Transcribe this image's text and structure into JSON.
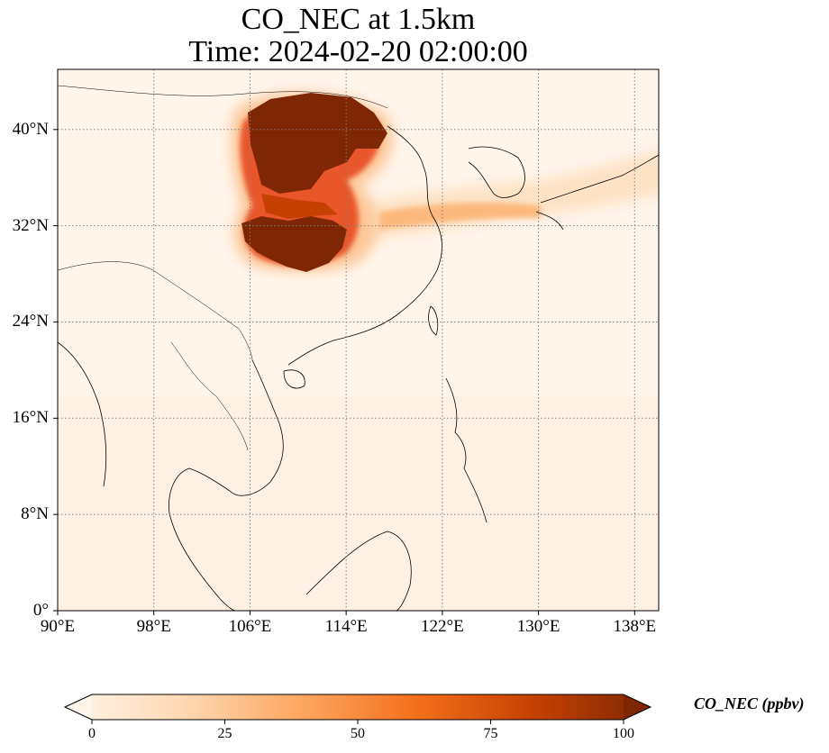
{
  "title": {
    "line1": "CO_NEC at 1.5km",
    "line2": "Time: 2024-02-20 02:00:00"
  },
  "map": {
    "extent": {
      "lon": [
        90,
        140
      ],
      "lat": [
        0,
        45
      ]
    },
    "lat_ticks": [
      {
        "value": 40,
        "label": "40°N"
      },
      {
        "value": 32,
        "label": "32°N"
      },
      {
        "value": 24,
        "label": "24°N"
      },
      {
        "value": 16,
        "label": "16°N"
      },
      {
        "value": 8,
        "label": "8°N"
      },
      {
        "value": 0,
        "label": "0°"
      }
    ],
    "lon_ticks": [
      {
        "value": 90,
        "label": "90°E"
      },
      {
        "value": 98,
        "label": "98°E"
      },
      {
        "value": 106,
        "label": "106°E"
      },
      {
        "value": 114,
        "label": "114°E"
      },
      {
        "value": 122,
        "label": "122°E"
      },
      {
        "value": 130,
        "label": "130°E"
      },
      {
        "value": 138,
        "label": "138°E"
      }
    ],
    "gridlines": true,
    "background_color": "#fff5eb",
    "plumes": [
      {
        "lon": 110.5,
        "lat": 38.5,
        "value": 100
      },
      {
        "lon": 108.5,
        "lat": 36.0,
        "value": 95
      },
      {
        "lon": 111.5,
        "lat": 35.5,
        "value": 85
      },
      {
        "lon": 110.0,
        "lat": 30.5,
        "value": 100
      },
      {
        "lon": 116.0,
        "lat": 33.0,
        "value": 60
      },
      {
        "lon": 124.0,
        "lat": 34.0,
        "value": 30
      },
      {
        "lon": 134.0,
        "lat": 34.5,
        "value": 20
      }
    ]
  },
  "colorbar": {
    "label": "CO_NEC (ppbv)",
    "range": [
      0,
      100
    ],
    "ticks": [
      {
        "value": 0,
        "label": "0"
      },
      {
        "value": 25,
        "label": "25"
      },
      {
        "value": 50,
        "label": "50"
      },
      {
        "value": 75,
        "label": "75"
      },
      {
        "value": 100,
        "label": "100"
      }
    ],
    "colors": [
      "#fff5eb",
      "#fdd9b4",
      "#fda762",
      "#f3701b",
      "#c54102",
      "#7f2704"
    ]
  }
}
